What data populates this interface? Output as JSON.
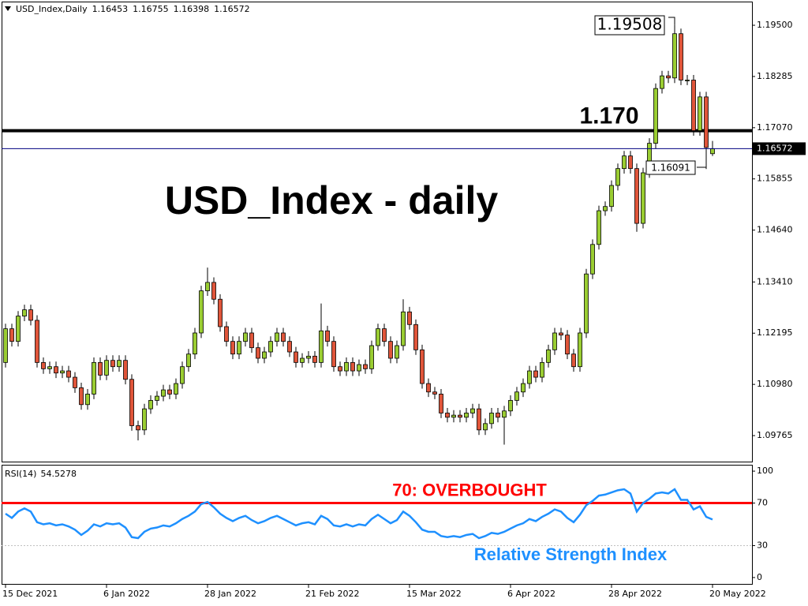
{
  "chart_data": [
    {
      "type": "candlestick",
      "title": "USD_Index - daily",
      "symbol": "USD_Index,Daily",
      "categories": [
        "15 Dec 2021",
        null,
        null,
        null,
        null,
        null,
        null,
        null,
        null,
        null,
        null,
        null,
        null,
        null,
        null,
        null,
        "6 Jan 2022",
        null,
        null,
        null,
        null,
        null,
        null,
        null,
        null,
        null,
        null,
        null,
        null,
        null,
        null,
        null,
        "28 Jan 2022",
        null,
        null,
        null,
        null,
        null,
        null,
        null,
        null,
        null,
        null,
        null,
        null,
        null,
        null,
        null,
        "21 Feb 2022",
        null,
        null,
        null,
        null,
        null,
        null,
        null,
        null,
        null,
        null,
        null,
        null,
        null,
        null,
        null,
        "15 Mar 2022",
        null,
        null,
        null,
        null,
        null,
        null,
        null,
        null,
        null,
        null,
        null,
        null,
        null,
        null,
        null,
        "6 Apr 2022",
        null,
        null,
        null,
        null,
        null,
        null,
        null,
        null,
        null,
        null,
        null,
        null,
        null,
        null,
        null,
        "28 Apr 2022",
        null,
        null,
        null,
        null,
        null,
        null,
        null,
        null,
        null,
        null,
        null,
        null,
        null,
        null,
        null,
        "20 May 2022"
      ],
      "open": [
        1.115,
        1.123,
        1.12,
        1.126,
        1.1275,
        1.125,
        1.115,
        1.1135,
        1.114,
        1.1125,
        1.113,
        1.1115,
        1.109,
        1.105,
        1.1075,
        1.115,
        1.112,
        1.1155,
        1.114,
        1.1155,
        1.111,
        1.1,
        1.099,
        1.104,
        1.106,
        1.107,
        1.1085,
        1.1075,
        1.11,
        1.114,
        1.117,
        1.122,
        1.132,
        1.134,
        1.13,
        1.1235,
        1.12,
        1.117,
        1.12,
        1.122,
        1.1185,
        1.116,
        1.1175,
        1.12,
        1.122,
        1.12,
        1.1175,
        1.115,
        1.116,
        1.1165,
        1.115,
        1.1225,
        1.12,
        1.114,
        1.113,
        1.115,
        1.113,
        1.1145,
        1.1135,
        1.119,
        1.123,
        1.12,
        1.116,
        1.119,
        1.127,
        1.124,
        1.118,
        1.11,
        1.108,
        1.1075,
        1.103,
        1.102,
        1.1025,
        1.102,
        1.103,
        1.104,
        1.099,
        1.1005,
        1.103,
        1.102,
        1.1035,
        1.106,
        1.108,
        1.11,
        1.113,
        1.1115,
        1.115,
        1.118,
        1.122,
        1.1215,
        1.117,
        1.114,
        1.122,
        1.136,
        1.143,
        1.151,
        1.152,
        1.157,
        1.161,
        1.164,
        1.161,
        1.148,
        1.16,
        1.167,
        1.18,
        1.183,
        1.1825,
        1.193,
        1.182,
        1.182,
        1.17,
        1.178,
        1.16453
      ],
      "high": [
        1.1242,
        1.1242,
        1.1272,
        1.1287,
        1.1287,
        1.1262,
        1.1162,
        1.1152,
        1.1152,
        1.1142,
        1.1142,
        1.1127,
        1.1102,
        1.1087,
        1.1162,
        1.1162,
        1.1167,
        1.1167,
        1.1167,
        1.1167,
        1.1122,
        1.1012,
        1.1052,
        1.1072,
        1.1082,
        1.1097,
        1.1097,
        1.1112,
        1.1152,
        1.1182,
        1.1232,
        1.1332,
        1.1375,
        1.1352,
        1.1312,
        1.1247,
        1.1212,
        1.1212,
        1.1232,
        1.1232,
        1.1197,
        1.1187,
        1.1212,
        1.1232,
        1.1232,
        1.1212,
        1.1187,
        1.1172,
        1.1177,
        1.1177,
        1.129,
        1.1237,
        1.1212,
        1.1152,
        1.1162,
        1.1162,
        1.1157,
        1.1157,
        1.1202,
        1.1242,
        1.1242,
        1.1212,
        1.1202,
        1.13,
        1.1282,
        1.1252,
        1.1192,
        1.1112,
        1.1092,
        1.1087,
        1.1042,
        1.1037,
        1.1037,
        1.1042,
        1.1052,
        1.1052,
        1.1017,
        1.1042,
        1.1042,
        1.1047,
        1.1072,
        1.1092,
        1.1112,
        1.1142,
        1.1142,
        1.1162,
        1.1192,
        1.1232,
        1.1232,
        1.1227,
        1.1182,
        1.1232,
        1.1372,
        1.1442,
        1.1522,
        1.1532,
        1.1582,
        1.1622,
        1.1652,
        1.1652,
        1.1622,
        1.1612,
        1.1682,
        1.1812,
        1.1842,
        1.1842,
        1.19508,
        1.1942,
        1.1832,
        1.1832,
        1.1792,
        1.1792,
        1.16755
      ],
      "low": [
        1.1138,
        1.1188,
        1.1188,
        1.1248,
        1.1238,
        1.1138,
        1.1123,
        1.1123,
        1.1113,
        1.1113,
        1.1103,
        1.1078,
        1.1038,
        1.1038,
        1.1063,
        1.1108,
        1.1108,
        1.1128,
        1.1128,
        1.1098,
        1.0988,
        1.0965,
        1.0978,
        1.1028,
        1.1048,
        1.1058,
        1.1063,
        1.1063,
        1.1088,
        1.1128,
        1.1158,
        1.1208,
        1.1308,
        1.1288,
        1.1223,
        1.1188,
        1.1158,
        1.1158,
        1.1188,
        1.1173,
        1.1148,
        1.1148,
        1.1163,
        1.1188,
        1.1188,
        1.1163,
        1.1138,
        1.1138,
        1.1148,
        1.1138,
        1.1138,
        1.1188,
        1.1128,
        1.1118,
        1.1118,
        1.1118,
        1.1118,
        1.1123,
        1.1123,
        1.1178,
        1.1188,
        1.1148,
        1.1148,
        1.1178,
        1.1228,
        1.1168,
        1.1088,
        1.1068,
        1.1063,
        1.1018,
        1.1008,
        1.1008,
        1.1008,
        1.1008,
        1.1018,
        1.0978,
        1.0978,
        1.0993,
        1.1008,
        1.0955,
        1.1023,
        1.1048,
        1.1068,
        1.1088,
        1.1103,
        1.1103,
        1.1138,
        1.1168,
        1.1203,
        1.1158,
        1.1128,
        1.1128,
        1.1208,
        1.1348,
        1.1418,
        1.1498,
        1.1508,
        1.1558,
        1.1598,
        1.1598,
        1.146,
        1.1468,
        1.1588,
        1.1658,
        1.1788,
        1.1813,
        1.1813,
        1.1808,
        1.1808,
        1.1688,
        1.1688,
        1.16091,
        1.16398
      ],
      "close": [
        1.123,
        1.12,
        1.126,
        1.1275,
        1.125,
        1.115,
        1.1135,
        1.114,
        1.1125,
        1.113,
        1.1115,
        1.109,
        1.105,
        1.1075,
        1.115,
        1.112,
        1.1155,
        1.114,
        1.1155,
        1.111,
        1.1,
        1.099,
        1.104,
        1.106,
        1.107,
        1.1085,
        1.1075,
        1.11,
        1.114,
        1.117,
        1.122,
        1.132,
        1.134,
        1.13,
        1.1235,
        1.12,
        1.117,
        1.12,
        1.122,
        1.1185,
        1.116,
        1.1175,
        1.12,
        1.122,
        1.12,
        1.1175,
        1.115,
        1.116,
        1.1165,
        1.115,
        1.1225,
        1.12,
        1.114,
        1.113,
        1.115,
        1.113,
        1.1145,
        1.1135,
        1.119,
        1.123,
        1.12,
        1.116,
        1.119,
        1.127,
        1.124,
        1.118,
        1.11,
        1.108,
        1.1075,
        1.103,
        1.102,
        1.1025,
        1.102,
        1.103,
        1.104,
        1.099,
        1.1005,
        1.103,
        1.102,
        1.1035,
        1.106,
        1.108,
        1.11,
        1.113,
        1.1115,
        1.115,
        1.118,
        1.122,
        1.1215,
        1.117,
        1.114,
        1.122,
        1.136,
        1.143,
        1.151,
        1.152,
        1.157,
        1.161,
        1.164,
        1.161,
        1.148,
        1.16,
        1.167,
        1.18,
        1.183,
        1.1825,
        1.193,
        1.182,
        1.182,
        1.17,
        1.178,
        1.166,
        1.16572
      ],
      "up_color": "#9acd32",
      "down_color": "#e0553a",
      "wick_color": "#000000",
      "ylim": [
        1.09148,
        1.20062
      ],
      "yticks": [
        {
          "value": 1.195,
          "label": "1.19500"
        },
        1.18285,
        {
          "value": 1.1707,
          "label": "1.17070"
        },
        1.15855,
        {
          "value": 1.1464,
          "label": "1.14640"
        },
        {
          "value": 1.1341,
          "label": "1.13410"
        },
        1.12195,
        {
          "value": 1.1098,
          "label": "1.10980"
        },
        1.09765
      ],
      "level": {
        "value": 1.17,
        "label": "1.170",
        "color": "#000000"
      },
      "current_line_color": "#000080"
    },
    {
      "type": "line",
      "title": "RSI(14)",
      "values": [
        60,
        56,
        62,
        65,
        62,
        52,
        50,
        51,
        49,
        50,
        48,
        45,
        40,
        44,
        50,
        48,
        51,
        50,
        51,
        47,
        38,
        37,
        43,
        46,
        47,
        49,
        48,
        51,
        55,
        58,
        62,
        69,
        71,
        66,
        60,
        56,
        53,
        56,
        58,
        54,
        51,
        53,
        56,
        58,
        55,
        52,
        49,
        51,
        52,
        50,
        58,
        55,
        49,
        48,
        50,
        48,
        50,
        49,
        55,
        59,
        55,
        51,
        54,
        62,
        58,
        52,
        45,
        43,
        43,
        39,
        38,
        39,
        38,
        40,
        41,
        37,
        39,
        42,
        41,
        43,
        46,
        49,
        51,
        55,
        53,
        57,
        60,
        64,
        62,
        56,
        52,
        59,
        68,
        72,
        77,
        78,
        80,
        82,
        83,
        79,
        62,
        70,
        74,
        79,
        80,
        79,
        83,
        73,
        73,
        64,
        67,
        57,
        54.5278
      ],
      "color": "#1e90ff",
      "ylim": [
        -6,
        106
      ],
      "yticks": [
        0,
        30,
        70,
        100
      ],
      "levels": [
        {
          "value": 70,
          "label": "70: OVERBOUGHT",
          "color": "#ff0000"
        },
        {
          "value": 30,
          "color": "#c0c0c0"
        }
      ],
      "annotation": "Relative Strength Index",
      "annotation_color": "#1e90ff"
    }
  ]
}
